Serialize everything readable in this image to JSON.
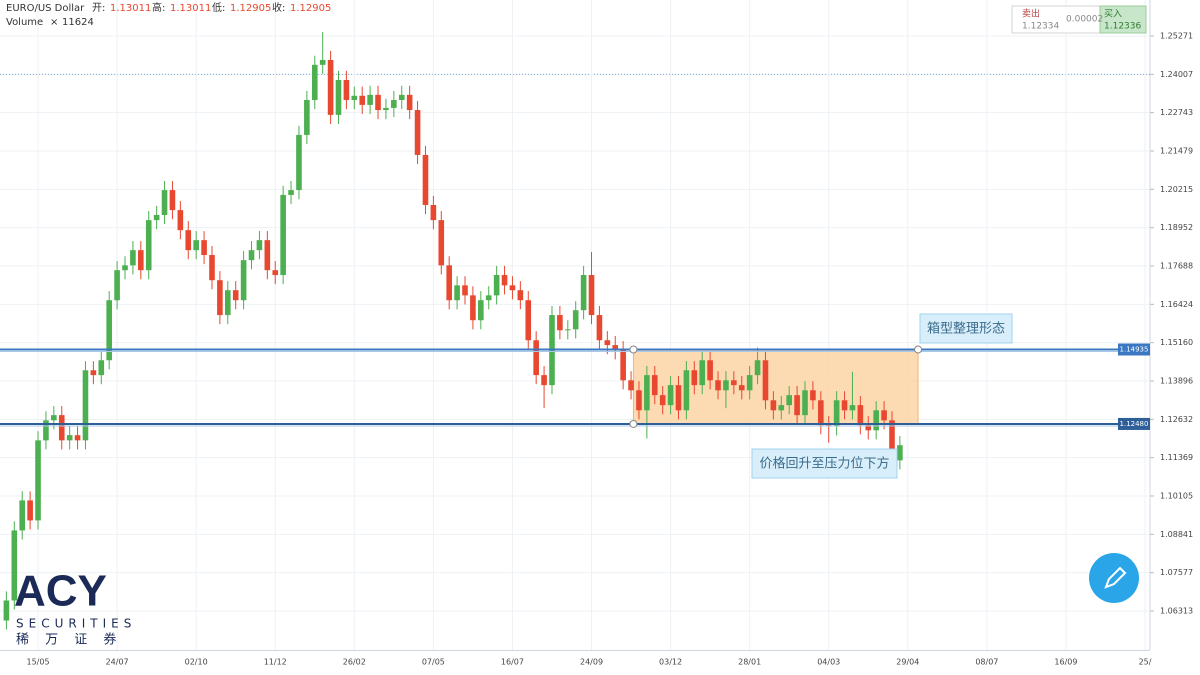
{
  "ui": {
    "symbol": "EURO/US Dollar",
    "quote": [
      {
        "label": "开:",
        "value": "1.13011"
      },
      {
        "label": "高:",
        "value": "1.13011"
      },
      {
        "label": "低:",
        "value": "1.12905"
      },
      {
        "label": "收:",
        "value": "1.12905"
      }
    ],
    "volume_label": "Volume",
    "volume_x": "×",
    "volume_value": "11624",
    "trade": {
      "sell_label": "卖出",
      "sell_price": "1.12334",
      "spread": "0.00002",
      "buy_label": "买入",
      "buy_price": "1.12336"
    },
    "logo": {
      "brand": "ACY",
      "sub": "SECURITIES",
      "cn": "稀 万 证 券"
    }
  },
  "chart_data": {
    "type": "candlestick",
    "up_color": "#4caf50",
    "down_color": "#e8482f",
    "grid": true,
    "ylim": [
      1.05027,
      1.26458
    ],
    "yticks": [
      1.25271,
      1.24007,
      1.22743,
      1.21479,
      1.20215,
      1.18952,
      1.17688,
      1.16424,
      {
        "value": 1.1516,
        "label": "1.15160"
      },
      1.13896,
      1.12632,
      1.11369,
      1.10105,
      1.08841,
      1.07577,
      1.06313
    ],
    "levels": [
      {
        "value": 1.14935,
        "label": "1.14935",
        "color": "#3a78c2"
      },
      {
        "value": 1.1248,
        "label": "1.12480",
        "color": "#2e5f99"
      }
    ],
    "annotations": [
      "箱型整理形态",
      "价格回升至压力位下方"
    ],
    "categories": [
      null,
      null,
      null,
      null,
      "15/05",
      null,
      null,
      null,
      null,
      null,
      null,
      null,
      null,
      null,
      "24/07",
      null,
      null,
      null,
      null,
      null,
      null,
      null,
      null,
      null,
      "02/10",
      null,
      null,
      null,
      null,
      null,
      null,
      null,
      null,
      null,
      "11/12",
      null,
      null,
      null,
      null,
      null,
      null,
      null,
      null,
      null,
      "26/02",
      null,
      null,
      null,
      null,
      null,
      null,
      null,
      null,
      null,
      "07/05",
      null,
      null,
      null,
      null,
      null,
      null,
      null,
      null,
      null,
      "16/07",
      null,
      null,
      null,
      null,
      null,
      null,
      null,
      null,
      null,
      "24/09",
      null,
      null,
      null,
      null,
      null,
      null,
      null,
      null,
      null,
      "03/12",
      null,
      null,
      null,
      null,
      null,
      null,
      null,
      null,
      null,
      "28/01",
      null,
      null,
      null,
      null,
      null,
      null,
      null,
      null,
      null,
      "04/03",
      null,
      null,
      null,
      null,
      null,
      null,
      null,
      null,
      null,
      "29/04",
      null,
      null,
      null,
      null,
      null,
      null,
      null,
      null,
      null,
      "08/07",
      null,
      null,
      null,
      null,
      null,
      null,
      null,
      null,
      null,
      "16/09",
      null,
      null,
      null,
      null,
      null,
      null,
      null,
      null,
      null,
      "25/"
    ],
    "ohlc": [
      [
        1.06,
        1.0696,
        1.057,
        1.0666
      ],
      [
        1.0666,
        1.0927,
        1.0636,
        1.0897
      ],
      [
        1.0897,
        1.1026,
        1.0867,
        1.0996
      ],
      [
        1.0996,
        1.1026,
        1.09,
        1.093
      ],
      [
        1.093,
        1.1224,
        1.09,
        1.1194
      ],
      [
        1.1194,
        1.129,
        1.1164,
        1.126
      ],
      [
        1.126,
        1.1307,
        1.123,
        1.1277
      ],
      [
        1.1277,
        1.1307,
        1.1164,
        1.1194
      ],
      [
        1.1194,
        1.1241,
        1.1164,
        1.1211
      ],
      [
        1.1211,
        1.1241,
        1.1164,
        1.1194
      ],
      [
        1.1194,
        1.1455,
        1.1164,
        1.1425
      ],
      [
        1.1425,
        1.1455,
        1.1379,
        1.1409
      ],
      [
        1.1409,
        1.1488,
        1.1379,
        1.1458
      ],
      [
        1.1458,
        1.1686,
        1.1428,
        1.1656
      ],
      [
        1.1656,
        1.1785,
        1.1626,
        1.1755
      ],
      [
        1.1755,
        1.1801,
        1.1725,
        1.1771
      ],
      [
        1.1771,
        1.1851,
        1.1741,
        1.1821
      ],
      [
        1.1821,
        1.1851,
        1.1725,
        1.1755
      ],
      [
        1.1755,
        1.195,
        1.1725,
        1.192
      ],
      [
        1.192,
        1.1967,
        1.189,
        1.1937
      ],
      [
        1.1937,
        1.2049,
        1.1907,
        1.2019
      ],
      [
        1.2019,
        1.2049,
        1.1923,
        1.1953
      ],
      [
        1.1953,
        1.1983,
        1.1857,
        1.1887
      ],
      [
        1.1887,
        1.1917,
        1.1791,
        1.1821
      ],
      [
        1.1821,
        1.1884,
        1.1791,
        1.1854
      ],
      [
        1.1854,
        1.1884,
        1.1775,
        1.1805
      ],
      [
        1.1805,
        1.1835,
        1.1692,
        1.1722
      ],
      [
        1.1722,
        1.1752,
        1.1577,
        1.1607
      ],
      [
        1.1607,
        1.1719,
        1.1577,
        1.1689
      ],
      [
        1.1689,
        1.1719,
        1.1626,
        1.1656
      ],
      [
        1.1656,
        1.1818,
        1.1626,
        1.1788
      ],
      [
        1.1788,
        1.1851,
        1.1758,
        1.1821
      ],
      [
        1.1821,
        1.1884,
        1.1791,
        1.1854
      ],
      [
        1.1854,
        1.1884,
        1.1725,
        1.1755
      ],
      [
        1.1755,
        1.1785,
        1.1709,
        1.1739
      ],
      [
        1.1739,
        1.2033,
        1.1709,
        1.2003
      ],
      [
        1.2003,
        1.2049,
        1.1973,
        1.2019
      ],
      [
        1.2019,
        1.2231,
        1.1989,
        1.2201
      ],
      [
        1.2201,
        1.2346,
        1.2171,
        1.2316
      ],
      [
        1.2316,
        1.2462,
        1.2286,
        1.2432
      ],
      [
        1.2432,
        1.254,
        1.2402,
        1.2448
      ],
      [
        1.2448,
        1.2478,
        1.2237,
        1.2267
      ],
      [
        1.2267,
        1.2412,
        1.2237,
        1.2382
      ],
      [
        1.2382,
        1.2412,
        1.2286,
        1.2316
      ],
      [
        1.2316,
        1.236,
        1.2286,
        1.233
      ],
      [
        1.233,
        1.236,
        1.227,
        1.23
      ],
      [
        1.23,
        1.2363,
        1.227,
        1.2333
      ],
      [
        1.2333,
        1.2363,
        1.2253,
        1.2283
      ],
      [
        1.2283,
        1.232,
        1.2253,
        1.229
      ],
      [
        1.229,
        1.2346,
        1.226,
        1.2316
      ],
      [
        1.2316,
        1.2363,
        1.2286,
        1.2333
      ],
      [
        1.2333,
        1.2363,
        1.2253,
        1.2283
      ],
      [
        1.2283,
        1.2313,
        1.2105,
        1.2135
      ],
      [
        1.2135,
        1.2165,
        1.194,
        1.197
      ],
      [
        1.197,
        1.2,
        1.189,
        1.192
      ],
      [
        1.192,
        1.195,
        1.1741,
        1.1771
      ],
      [
        1.1771,
        1.1801,
        1.1626,
        1.1656
      ],
      [
        1.1656,
        1.1735,
        1.1626,
        1.1705
      ],
      [
        1.1705,
        1.1735,
        1.1642,
        1.1672
      ],
      [
        1.1672,
        1.1702,
        1.156,
        1.159
      ],
      [
        1.159,
        1.1686,
        1.156,
        1.1656
      ],
      [
        1.1656,
        1.1702,
        1.1626,
        1.1672
      ],
      [
        1.1672,
        1.1769,
        1.1642,
        1.1739
      ],
      [
        1.1739,
        1.1769,
        1.1675,
        1.1705
      ],
      [
        1.1705,
        1.1735,
        1.1659,
        1.1689
      ],
      [
        1.1689,
        1.1719,
        1.1626,
        1.1656
      ],
      [
        1.1656,
        1.1686,
        1.1494,
        1.1524
      ],
      [
        1.1524,
        1.1554,
        1.1379,
        1.1409
      ],
      [
        1.1409,
        1.1439,
        1.13,
        1.1376
      ],
      [
        1.1376,
        1.1637,
        1.1346,
        1.1607
      ],
      [
        1.1607,
        1.1637,
        1.1527,
        1.1557
      ],
      [
        1.1557,
        1.159,
        1.1527,
        1.156
      ],
      [
        1.156,
        1.1653,
        1.153,
        1.1623
      ],
      [
        1.1623,
        1.1769,
        1.1593,
        1.1739
      ],
      [
        1.1739,
        1.1815,
        1.1577,
        1.1607
      ],
      [
        1.1607,
        1.1637,
        1.1494,
        1.1524
      ],
      [
        1.1524,
        1.1554,
        1.1478,
        1.1508
      ],
      [
        1.1508,
        1.1538,
        1.1461,
        1.1491
      ],
      [
        1.1491,
        1.1521,
        1.1362,
        1.1392
      ],
      [
        1.1392,
        1.1422,
        1.1329,
        1.1359
      ],
      [
        1.1359,
        1.1389,
        1.1263,
        1.1293
      ],
      [
        1.1293,
        1.1439,
        1.12,
        1.1409
      ],
      [
        1.1409,
        1.1439,
        1.1313,
        1.1343
      ],
      [
        1.1343,
        1.1373,
        1.128,
        1.131
      ],
      [
        1.131,
        1.1406,
        1.128,
        1.1376
      ],
      [
        1.1376,
        1.1406,
        1.1263,
        1.1293
      ],
      [
        1.1293,
        1.1455,
        1.1263,
        1.1425
      ],
      [
        1.1425,
        1.1455,
        1.1346,
        1.1376
      ],
      [
        1.1376,
        1.1488,
        1.1346,
        1.1458
      ],
      [
        1.1458,
        1.1488,
        1.1362,
        1.1392
      ],
      [
        1.1392,
        1.1422,
        1.1329,
        1.1359
      ],
      [
        1.1359,
        1.1422,
        1.13,
        1.1392
      ],
      [
        1.1392,
        1.1422,
        1.1346,
        1.1376
      ],
      [
        1.1376,
        1.1406,
        1.1329,
        1.1359
      ],
      [
        1.1359,
        1.1439,
        1.1329,
        1.1409
      ],
      [
        1.1409,
        1.15,
        1.1379,
        1.1458
      ],
      [
        1.1458,
        1.1488,
        1.1296,
        1.1326
      ],
      [
        1.1326,
        1.1356,
        1.1263,
        1.1293
      ],
      [
        1.1293,
        1.134,
        1.1263,
        1.131
      ],
      [
        1.131,
        1.1373,
        1.128,
        1.1343
      ],
      [
        1.1343,
        1.1373,
        1.1247,
        1.1277
      ],
      [
        1.1277,
        1.1389,
        1.1247,
        1.1359
      ],
      [
        1.1359,
        1.1389,
        1.1296,
        1.1326
      ],
      [
        1.1326,
        1.1356,
        1.1214,
        1.1244
      ],
      [
        1.1244,
        1.1274,
        1.1186,
        1.124
      ],
      [
        1.124,
        1.1356,
        1.121,
        1.1326
      ],
      [
        1.1326,
        1.1356,
        1.1263,
        1.1293
      ],
      [
        1.1293,
        1.142,
        1.1263,
        1.131
      ],
      [
        1.131,
        1.134,
        1.1214,
        1.1244
      ],
      [
        1.1244,
        1.1274,
        1.1197,
        1.1227
      ],
      [
        1.1227,
        1.1323,
        1.1197,
        1.1293
      ],
      [
        1.1293,
        1.1323,
        1.123,
        1.126
      ],
      [
        1.126,
        1.129,
        1.1098,
        1.1128
      ],
      [
        1.1128,
        1.1208,
        1.1098,
        1.1178
      ],
      null,
      null,
      null,
      null,
      null,
      null,
      null,
      null,
      null,
      null,
      null,
      null,
      null,
      null,
      null,
      null,
      null,
      null,
      null,
      null,
      null,
      null,
      null,
      null,
      null,
      null,
      null,
      null,
      null,
      null,
      null
    ]
  }
}
